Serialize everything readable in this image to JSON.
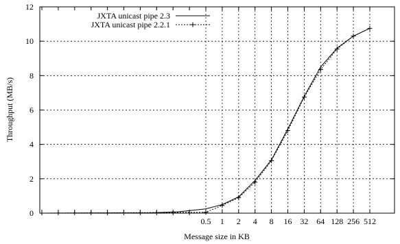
{
  "chart_data": {
    "type": "line",
    "title": "",
    "xlabel": "Message size in KB",
    "ylabel": "Throughput (MB/s)",
    "x_scale": "log2",
    "grid": true,
    "legend_position": "top-right",
    "ylim": [
      0,
      12
    ],
    "yticks": [
      0,
      2,
      4,
      6,
      8,
      10,
      12
    ],
    "xticks": [
      0.5,
      1,
      2,
      4,
      8,
      16,
      32,
      64,
      128,
      256,
      512
    ],
    "xtick_labels": [
      "0.5",
      "1",
      "2",
      "4",
      "8",
      "16",
      "32",
      "64",
      "128",
      "256",
      "512"
    ],
    "series": [
      {
        "name": "JXTA unicast pipe 2.3",
        "style": "solid",
        "marker": "none",
        "x": [
          0.5,
          1,
          2,
          4,
          8,
          16,
          32,
          64,
          128,
          256,
          512
        ],
        "y": [
          0.25,
          0.5,
          0.95,
          1.9,
          3.1,
          4.9,
          6.8,
          8.5,
          9.6,
          10.3,
          10.75
        ]
      },
      {
        "name": "JXTA unicast pipe 2.2.1",
        "style": "dotted",
        "marker": "plus",
        "x": [
          0.5,
          1,
          2,
          4,
          8,
          16,
          32,
          64,
          128,
          256,
          512
        ],
        "y": [
          0.05,
          0.45,
          0.9,
          1.8,
          3.05,
          4.8,
          6.75,
          8.35,
          9.55,
          10.3,
          10.75
        ]
      }
    ]
  }
}
